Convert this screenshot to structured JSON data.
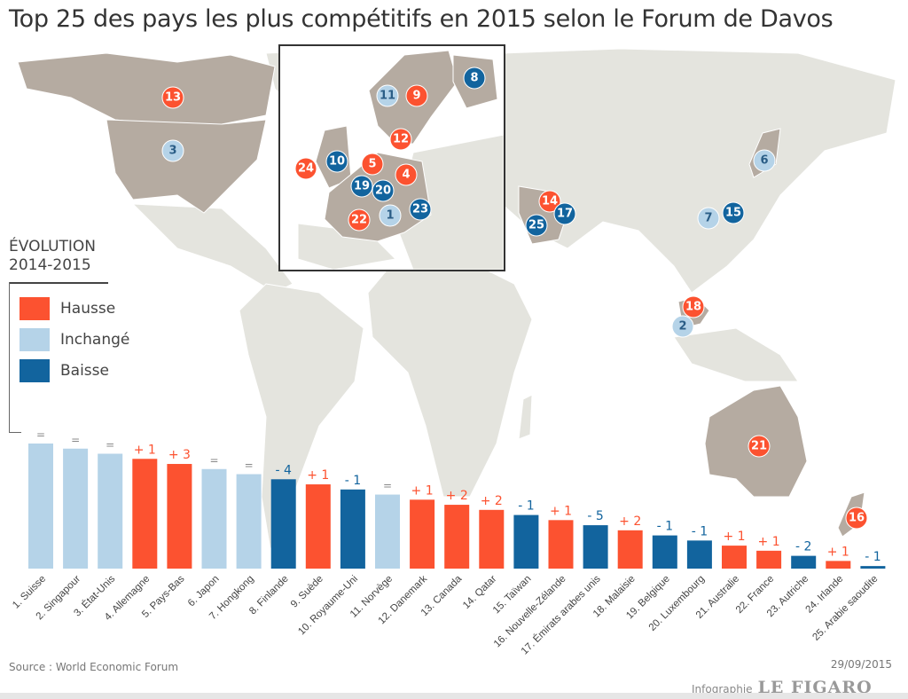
{
  "title": "Top 25 des pays les plus compétitifs en 2015 selon le Forum de Davos",
  "colors": {
    "hausse": "#fc5230",
    "inchange": "#b5d3e8",
    "baisse": "#12649e",
    "land_main": "#b5aba1",
    "land_other": "#e4e4de"
  },
  "legend": {
    "title_line1": "ÉVOLUTION",
    "title_line2": "2014-2015",
    "items": [
      {
        "label": "Hausse",
        "status": "hausse"
      },
      {
        "label": "Inchangé",
        "status": "inchange"
      },
      {
        "label": "Baisse",
        "status": "baisse"
      }
    ]
  },
  "map": {
    "markers": [
      {
        "rank": "1",
        "status": "inchange"
      },
      {
        "rank": "2",
        "status": "inchange"
      },
      {
        "rank": "3",
        "status": "inchange"
      },
      {
        "rank": "4",
        "status": "hausse"
      },
      {
        "rank": "5",
        "status": "hausse"
      },
      {
        "rank": "6",
        "status": "inchange"
      },
      {
        "rank": "7",
        "status": "inchange"
      },
      {
        "rank": "8",
        "status": "baisse"
      },
      {
        "rank": "9",
        "status": "hausse"
      },
      {
        "rank": "10",
        "status": "baisse"
      },
      {
        "rank": "11",
        "status": "inchange"
      },
      {
        "rank": "12",
        "status": "hausse"
      },
      {
        "rank": "13",
        "status": "hausse"
      },
      {
        "rank": "14",
        "status": "hausse"
      },
      {
        "rank": "15",
        "status": "baisse"
      },
      {
        "rank": "16",
        "status": "hausse"
      },
      {
        "rank": "17",
        "status": "baisse"
      },
      {
        "rank": "18",
        "status": "hausse"
      },
      {
        "rank": "19",
        "status": "baisse"
      },
      {
        "rank": "20",
        "status": "baisse"
      },
      {
        "rank": "21",
        "status": "hausse"
      },
      {
        "rank": "22",
        "status": "hausse"
      },
      {
        "rank": "23",
        "status": "baisse"
      },
      {
        "rank": "24",
        "status": "hausse"
      },
      {
        "rank": "25",
        "status": "baisse"
      }
    ]
  },
  "chart_data": {
    "type": "bar",
    "title": "Top 25 des pays les plus compétitifs en 2015 selon le Forum de Davos",
    "xlabel": "",
    "ylabel": "",
    "categories": [
      "1. Suisse",
      "2. Singapour",
      "3. État-Unis",
      "4. Allemagne",
      "5. Pays-Bas",
      "6. Japon",
      "7. Hongkong",
      "8. Finlande",
      "9. Suède",
      "10. Royaume-Uni",
      "11. Norvège",
      "12. Danemark",
      "13. Canada",
      "14. Qatar",
      "15. Taïwan",
      "16. Nouvelle-Zélande",
      "17. Émirats arabes unis",
      "18. Malaisie",
      "19. Belgique",
      "20. Luxembourg",
      "21. Australie",
      "22. France",
      "23. Autriche",
      "24. Irlande",
      "25. Arabie saoudite"
    ],
    "ranks": [
      1,
      2,
      3,
      4,
      5,
      6,
      7,
      8,
      9,
      10,
      11,
      12,
      13,
      14,
      15,
      16,
      17,
      18,
      19,
      20,
      21,
      22,
      23,
      24,
      25
    ],
    "changes": [
      "=",
      "=",
      "=",
      "+1",
      "+3",
      "=",
      "=",
      "-4",
      "+1",
      "-1",
      "=",
      "+1",
      "+2",
      "+2",
      "-1",
      "+1",
      "-5",
      "+2",
      "-1",
      "-1",
      "+1",
      "+1",
      "-2",
      "+1",
      "-1"
    ],
    "status": [
      "inchange",
      "inchange",
      "inchange",
      "hausse",
      "hausse",
      "inchange",
      "inchange",
      "baisse",
      "hausse",
      "baisse",
      "inchange",
      "hausse",
      "hausse",
      "hausse",
      "baisse",
      "hausse",
      "baisse",
      "hausse",
      "baisse",
      "baisse",
      "hausse",
      "hausse",
      "baisse",
      "hausse",
      "baisse"
    ],
    "grid": false,
    "legend_position": "left"
  },
  "footer": {
    "source": "Source : World Economic Forum",
    "date": "29/09/2015",
    "credit_prefix": "Infographie",
    "credit_brand": "LE FIGARO"
  }
}
